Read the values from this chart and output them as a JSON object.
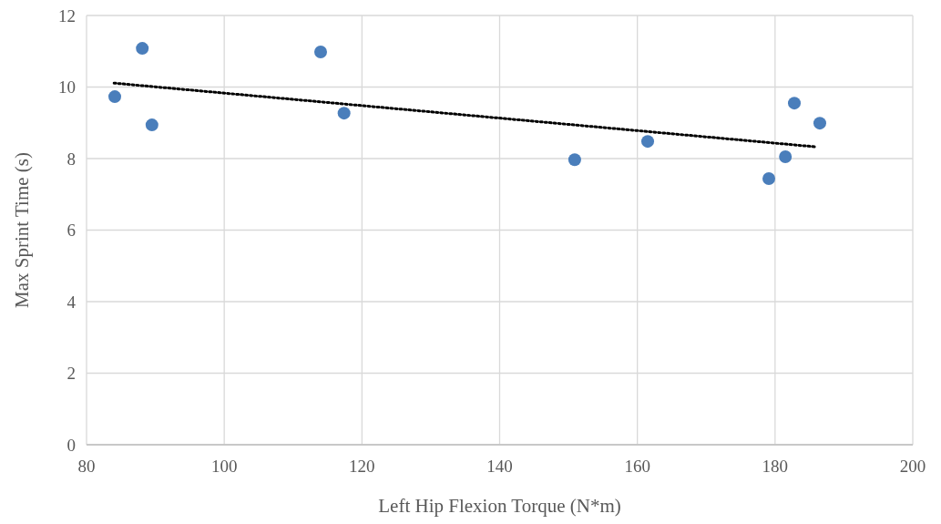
{
  "chart_data": {
    "type": "scatter",
    "xlabel": "Left Hip Flexion Torque (N*m)",
    "ylabel": "Max Sprint Time (s)",
    "xlim": [
      80,
      200
    ],
    "xticks": [
      80,
      100,
      120,
      140,
      160,
      180,
      200
    ],
    "ylim": [
      0,
      12
    ],
    "yticks": [
      0,
      2,
      4,
      6,
      8,
      10,
      12
    ],
    "grid": true,
    "series": [
      {
        "color": "#4a7ebb",
        "marker": "circle",
        "x": [
          84.1,
          88.1,
          89.5,
          114.0,
          117.4,
          150.9,
          161.5,
          179.1,
          181.5,
          182.8,
          186.5
        ],
        "values": [
          9.73,
          11.08,
          8.94,
          10.98,
          9.27,
          7.97,
          8.48,
          7.44,
          8.05,
          9.55,
          8.99
        ]
      },
      {
        "type": "line",
        "color": "#000000",
        "line_style": "dotted",
        "marker": "none",
        "x": [
          84.0,
          185.8
        ],
        "values": [
          10.11,
          8.33
        ]
      }
    ]
  }
}
